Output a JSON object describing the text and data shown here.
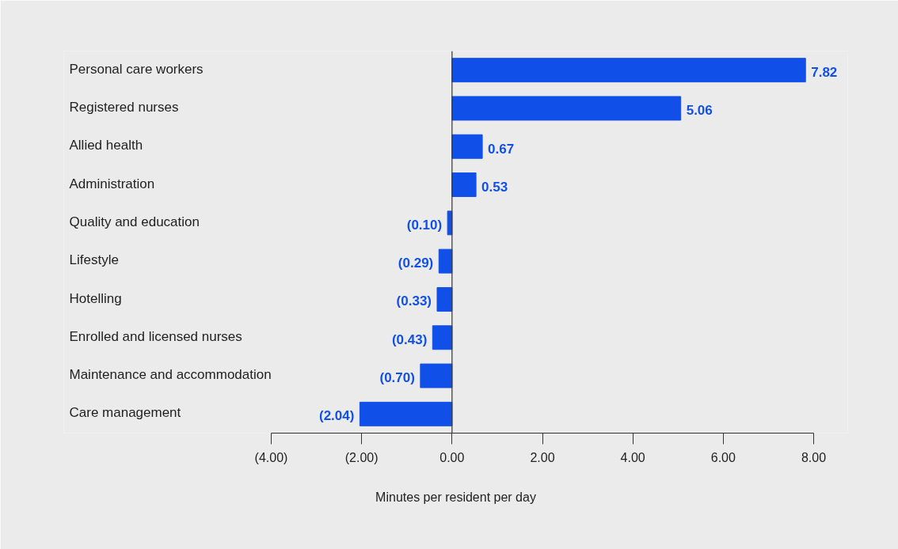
{
  "chart_data": {
    "type": "bar",
    "orientation": "horizontal",
    "xlabel": "Minutes per resident per day",
    "categories": [
      "Personal care workers",
      "Registered nurses",
      "Allied health",
      "Administration",
      "Quality and education",
      "Lifestyle",
      "Hotelling",
      "Enrolled and licensed nurses",
      "Maintenance and accommodation",
      "Care management"
    ],
    "values": [
      7.82,
      5.06,
      0.67,
      0.53,
      -0.1,
      -0.29,
      -0.33,
      -0.43,
      -0.7,
      -2.04
    ],
    "value_labels": [
      "7.82",
      "5.06",
      "0.67",
      "0.53",
      "(0.10)",
      "(0.29)",
      "(0.33)",
      "(0.43)",
      "(0.70)",
      "(2.04)"
    ],
    "color": "#1150e8",
    "xlim": [
      -4,
      8
    ],
    "xticks": [
      {
        "value": -4,
        "label": "(4.00)"
      },
      {
        "value": -2,
        "label": "(2.00)"
      },
      {
        "value": 0,
        "label": "0.00"
      },
      {
        "value": 2,
        "label": "2.00"
      },
      {
        "value": 4,
        "label": "4.00"
      },
      {
        "value": 6,
        "label": "6.00"
      },
      {
        "value": 8,
        "label": "8.00"
      }
    ],
    "ref_lines": [
      {
        "axis": "x",
        "value": 0,
        "color": "#333333"
      }
    ]
  }
}
